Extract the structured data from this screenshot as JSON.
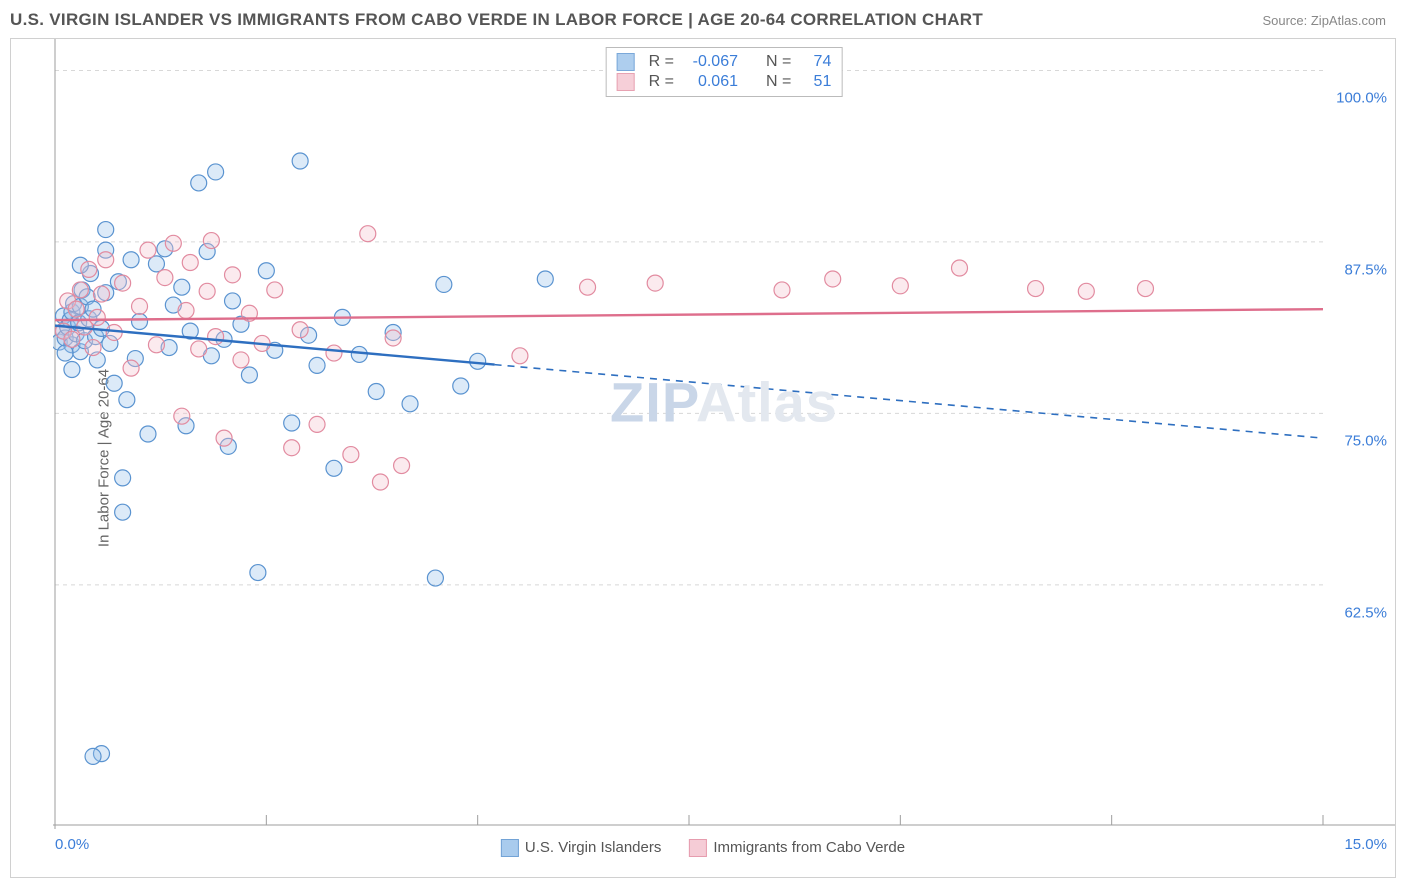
{
  "header": {
    "title": "U.S. VIRGIN ISLANDER VS IMMIGRANTS FROM CABO VERDE IN LABOR FORCE | AGE 20-64 CORRELATION CHART",
    "source": "Source: ZipAtlas.com"
  },
  "ylabel": "In Labor Force | Age 20-64",
  "watermark_zip": "ZIP",
  "watermark_atlas": "Atlas",
  "chart": {
    "type": "scatter",
    "x_domain": [
      0,
      15
    ],
    "y_domain": [
      45,
      102
    ],
    "y_gridlines": [
      62.5,
      75,
      87.5,
      100
    ],
    "y_tick_labels": [
      "62.5%",
      "75.0%",
      "87.5%",
      "100.0%"
    ],
    "x_ticks": [
      0,
      5,
      10,
      15
    ],
    "x_tick_labels": [
      "0.0%",
      "",
      "",
      "15.0%"
    ],
    "x_minor_ticks": [
      2.5,
      7.5,
      12.5
    ],
    "grid_color": "#d8d8d8",
    "axis_color": "#9e9e9e",
    "background_color": "#ffffff",
    "marker_radius": 8,
    "marker_stroke_width": 1.2,
    "marker_fill_opacity": 0.35,
    "series": [
      {
        "id": "usvi",
        "label": "U.S. Virgin Islanders",
        "color_fill": "#9bc2ea",
        "color_stroke": "#5a93d0",
        "line_color": "#2e6fc0",
        "R": "-0.067",
        "N": "74",
        "trend": {
          "x1": 0,
          "y1": 81.4,
          "x2": 15,
          "y2": 73.2,
          "solid_until_x": 5.2
        },
        "points": [
          [
            0.05,
            80.2
          ],
          [
            0.1,
            81.0
          ],
          [
            0.1,
            82.1
          ],
          [
            0.12,
            80.5
          ],
          [
            0.15,
            81.3
          ],
          [
            0.18,
            81.8
          ],
          [
            0.2,
            80.0
          ],
          [
            0.2,
            82.4
          ],
          [
            0.22,
            83.0
          ],
          [
            0.25,
            80.8
          ],
          [
            0.28,
            81.6
          ],
          [
            0.3,
            79.5
          ],
          [
            0.3,
            82.8
          ],
          [
            0.32,
            84.0
          ],
          [
            0.35,
            80.3
          ],
          [
            0.38,
            83.5
          ],
          [
            0.4,
            81.9
          ],
          [
            0.42,
            85.2
          ],
          [
            0.45,
            82.6
          ],
          [
            0.48,
            80.6
          ],
          [
            0.5,
            78.9
          ],
          [
            0.55,
            81.2
          ],
          [
            0.6,
            83.8
          ],
          [
            0.6,
            88.4
          ],
          [
            0.65,
            80.1
          ],
          [
            0.7,
            77.2
          ],
          [
            0.75,
            84.6
          ],
          [
            0.8,
            70.3
          ],
          [
            0.8,
            67.8
          ],
          [
            0.85,
            76.0
          ],
          [
            0.9,
            86.2
          ],
          [
            0.95,
            79.0
          ],
          [
            1.0,
            81.7
          ],
          [
            1.1,
            73.5
          ],
          [
            1.2,
            85.9
          ],
          [
            1.3,
            87.0
          ],
          [
            1.35,
            79.8
          ],
          [
            1.4,
            82.9
          ],
          [
            1.5,
            84.2
          ],
          [
            1.55,
            74.1
          ],
          [
            1.6,
            81.0
          ],
          [
            1.7,
            91.8
          ],
          [
            1.8,
            86.8
          ],
          [
            1.85,
            79.2
          ],
          [
            1.9,
            92.6
          ],
          [
            2.0,
            80.4
          ],
          [
            2.05,
            72.6
          ],
          [
            2.1,
            83.2
          ],
          [
            2.2,
            81.5
          ],
          [
            2.3,
            77.8
          ],
          [
            2.4,
            63.4
          ],
          [
            2.5,
            85.4
          ],
          [
            2.6,
            79.6
          ],
          [
            2.8,
            74.3
          ],
          [
            2.9,
            93.4
          ],
          [
            3.0,
            80.7
          ],
          [
            3.1,
            78.5
          ],
          [
            3.3,
            71.0
          ],
          [
            3.4,
            82.0
          ],
          [
            3.6,
            79.3
          ],
          [
            3.8,
            76.6
          ],
          [
            4.0,
            80.9
          ],
          [
            4.2,
            75.7
          ],
          [
            4.5,
            63.0
          ],
          [
            4.6,
            84.4
          ],
          [
            4.8,
            77.0
          ],
          [
            5.0,
            78.8
          ],
          [
            5.8,
            84.8
          ],
          [
            0.55,
            50.2
          ],
          [
            0.45,
            50.0
          ],
          [
            0.3,
            85.8
          ],
          [
            0.6,
            86.9
          ],
          [
            0.2,
            78.2
          ],
          [
            0.12,
            79.4
          ]
        ]
      },
      {
        "id": "cabo",
        "label": "Immigrants from Cabo Verde",
        "color_fill": "#f4c4cf",
        "color_stroke": "#e28ba0",
        "line_color": "#de6e8c",
        "R": "0.061",
        "N": "51",
        "trend": {
          "x1": 0,
          "y1": 81.8,
          "x2": 15,
          "y2": 82.6,
          "solid_until_x": 15
        },
        "points": [
          [
            0.1,
            81.0
          ],
          [
            0.15,
            83.2
          ],
          [
            0.2,
            80.4
          ],
          [
            0.25,
            82.6
          ],
          [
            0.3,
            84.0
          ],
          [
            0.35,
            81.3
          ],
          [
            0.4,
            85.5
          ],
          [
            0.45,
            79.8
          ],
          [
            0.5,
            82.0
          ],
          [
            0.55,
            83.7
          ],
          [
            0.6,
            86.2
          ],
          [
            0.7,
            80.9
          ],
          [
            0.8,
            84.5
          ],
          [
            0.9,
            78.3
          ],
          [
            1.0,
            82.8
          ],
          [
            1.1,
            86.9
          ],
          [
            1.2,
            80.0
          ],
          [
            1.3,
            84.9
          ],
          [
            1.4,
            87.4
          ],
          [
            1.5,
            74.8
          ],
          [
            1.55,
            82.5
          ],
          [
            1.6,
            86.0
          ],
          [
            1.7,
            79.7
          ],
          [
            1.8,
            83.9
          ],
          [
            1.85,
            87.6
          ],
          [
            1.9,
            80.6
          ],
          [
            2.0,
            73.2
          ],
          [
            2.1,
            85.1
          ],
          [
            2.2,
            78.9
          ],
          [
            2.3,
            82.3
          ],
          [
            2.45,
            80.1
          ],
          [
            2.6,
            84.0
          ],
          [
            2.8,
            72.5
          ],
          [
            2.9,
            81.1
          ],
          [
            3.1,
            74.2
          ],
          [
            3.3,
            79.4
          ],
          [
            3.5,
            72.0
          ],
          [
            3.7,
            88.1
          ],
          [
            3.85,
            70.0
          ],
          [
            4.0,
            80.5
          ],
          [
            4.1,
            71.2
          ],
          [
            5.5,
            79.2
          ],
          [
            6.3,
            84.2
          ],
          [
            7.1,
            84.5
          ],
          [
            8.6,
            84.0
          ],
          [
            9.2,
            84.8
          ],
          [
            10.0,
            84.3
          ],
          [
            10.7,
            85.6
          ],
          [
            11.6,
            84.1
          ],
          [
            12.2,
            83.9
          ],
          [
            12.9,
            84.1
          ]
        ]
      }
    ]
  },
  "legend_top_labels": {
    "R": "R =",
    "N": "N ="
  },
  "legend_bottom": [
    {
      "series": "usvi"
    },
    {
      "series": "cabo"
    }
  ]
}
